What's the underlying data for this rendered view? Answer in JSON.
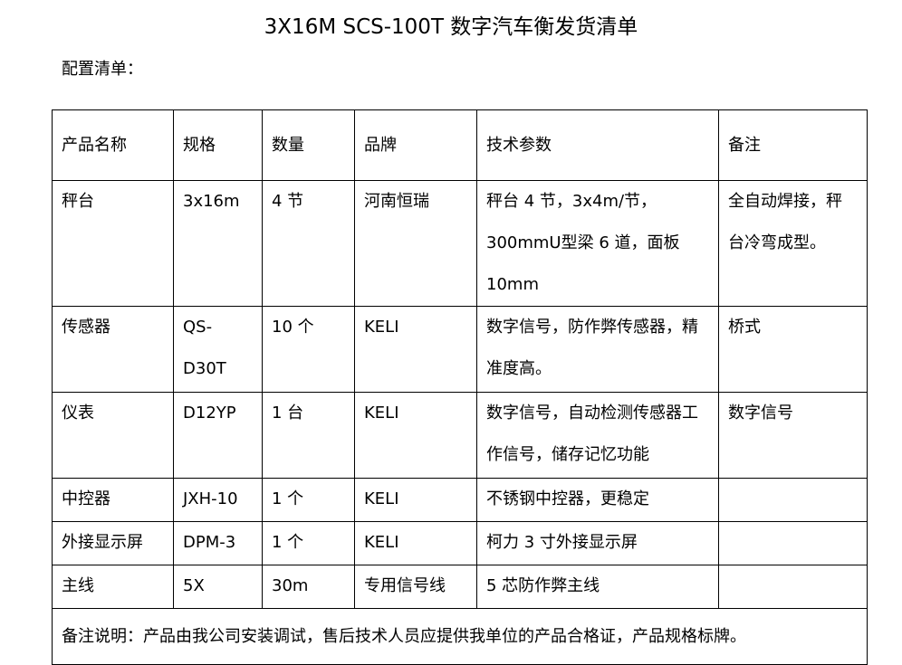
{
  "title": "3X16M SCS-100T 数字汽车衡发货清单",
  "subtitle": "配置清单：",
  "table": {
    "headers": [
      "产品名称",
      "规格",
      "数量",
      "品牌",
      "技术参数",
      "备注"
    ],
    "rows": [
      [
        "秤台",
        "3x16m",
        "4 节",
        "河南恒瑞",
        "秤台 4 节，3x4m/节，300mmU型梁 6 道，面板 10mm",
        "全自动焊接，秤台冷弯成型。"
      ],
      [
        "传感器",
        "QS-D30T",
        "10 个",
        "KELI",
        "数字信号，防作弊传感器，精准度高。",
        "桥式"
      ],
      [
        "仪表",
        "D12YP",
        "1 台",
        "KELI",
        "数字信号，自动检测传感器工作信号，储存记忆功能",
        "数字信号"
      ],
      [
        "中控器",
        "JXH-10",
        "1 个",
        "KELI",
        "不锈钢中控器，更稳定",
        ""
      ],
      [
        "外接显示屏",
        "DPM-3",
        "1 个",
        "KELI",
        "柯力 3 寸外接显示屏",
        ""
      ],
      [
        "主线",
        "5X",
        "30m",
        "专用信号线",
        "5 芯防作弊主线",
        ""
      ]
    ],
    "note": "备注说明：产品由我公司安装调试，售后技术人员应提供我单位的产品合格证，产品规格标牌。"
  }
}
